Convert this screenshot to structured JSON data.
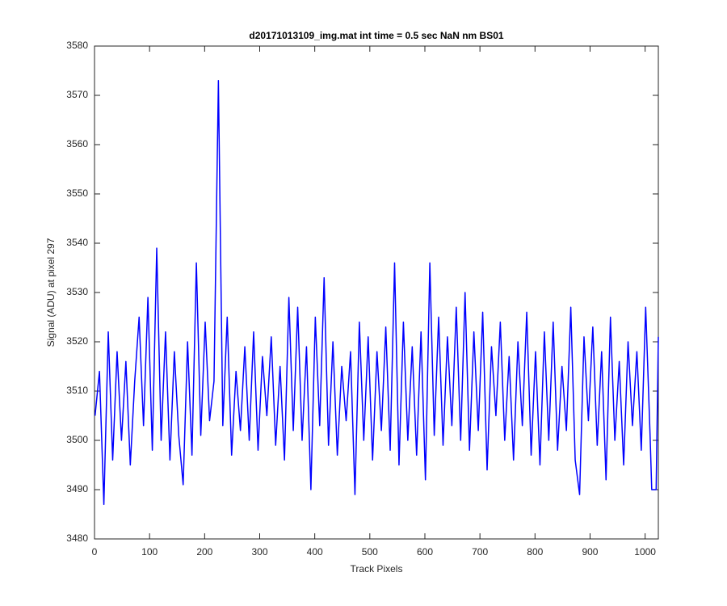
{
  "chart_data": {
    "type": "line",
    "title": "d20171013109_img.mat int time = 0.5 sec  NaN nm BS01",
    "xlabel": "Track Pixels",
    "ylabel": "Signal (ADU) at pixel 297",
    "xlim": [
      0,
      1024
    ],
    "ylim": [
      3480,
      3580
    ],
    "xticks": [
      0,
      100,
      200,
      300,
      400,
      500,
      600,
      700,
      800,
      900,
      1000
    ],
    "yticks": [
      3480,
      3490,
      3500,
      3510,
      3520,
      3530,
      3540,
      3550,
      3560,
      3570,
      3580
    ],
    "grid": false,
    "series": [
      {
        "color": "#0000ff",
        "x": [
          1,
          9,
          17,
          25,
          33,
          41,
          49,
          57,
          65,
          73,
          81,
          89,
          97,
          105,
          113,
          121,
          129,
          137,
          145,
          153,
          161,
          169,
          177,
          185,
          193,
          201,
          209,
          217,
          225,
          233,
          241,
          249,
          257,
          265,
          273,
          281,
          289,
          297,
          305,
          313,
          321,
          329,
          337,
          345,
          353,
          361,
          369,
          377,
          385,
          393,
          401,
          409,
          417,
          425,
          433,
          441,
          449,
          457,
          465,
          473,
          481,
          489,
          497,
          505,
          513,
          521,
          529,
          537,
          545,
          553,
          561,
          569,
          577,
          585,
          593,
          601,
          609,
          617,
          625,
          633,
          641,
          649,
          657,
          665,
          673,
          681,
          689,
          697,
          705,
          713,
          721,
          729,
          737,
          745,
          753,
          761,
          769,
          777,
          785,
          793,
          801,
          809,
          817,
          825,
          833,
          841,
          849,
          857,
          865,
          873,
          881,
          889,
          897,
          905,
          913,
          921,
          929,
          937,
          945,
          953,
          961,
          969,
          977,
          985,
          993,
          1001,
          1009,
          1012,
          1020,
          1024
        ],
        "values": [
          3505,
          3514,
          3487,
          3522,
          3496,
          3518,
          3500,
          3516,
          3495,
          3512,
          3525,
          3503,
          3529,
          3498,
          3539,
          3500,
          3522,
          3496,
          3518,
          3501,
          3491,
          3520,
          3497,
          3536,
          3501,
          3524,
          3504,
          3512,
          3573,
          3503,
          3525,
          3497,
          3514,
          3502,
          3519,
          3500,
          3522,
          3498,
          3517,
          3505,
          3521,
          3499,
          3515,
          3496,
          3529,
          3502,
          3527,
          3500,
          3519,
          3490,
          3525,
          3503,
          3533,
          3499,
          3520,
          3497,
          3515,
          3504,
          3518,
          3489,
          3524,
          3500,
          3521,
          3496,
          3518,
          3502,
          3523,
          3498,
          3536,
          3495,
          3524,
          3500,
          3519,
          3497,
          3522,
          3492,
          3536,
          3501,
          3525,
          3499,
          3521,
          3503,
          3527,
          3500,
          3530,
          3498,
          3522,
          3502,
          3526,
          3494,
          3519,
          3505,
          3524,
          3500,
          3517,
          3496,
          3520,
          3503,
          3526,
          3497,
          3518,
          3495,
          3522,
          3500,
          3524,
          3498,
          3515,
          3502,
          3527,
          3496,
          3489,
          3521,
          3504,
          3523,
          3499,
          3518,
          3492,
          3525,
          3500,
          3516,
          3495,
          3520,
          3503,
          3518,
          3498,
          3527,
          3501,
          3490,
          3490,
          3521
        ]
      }
    ]
  }
}
